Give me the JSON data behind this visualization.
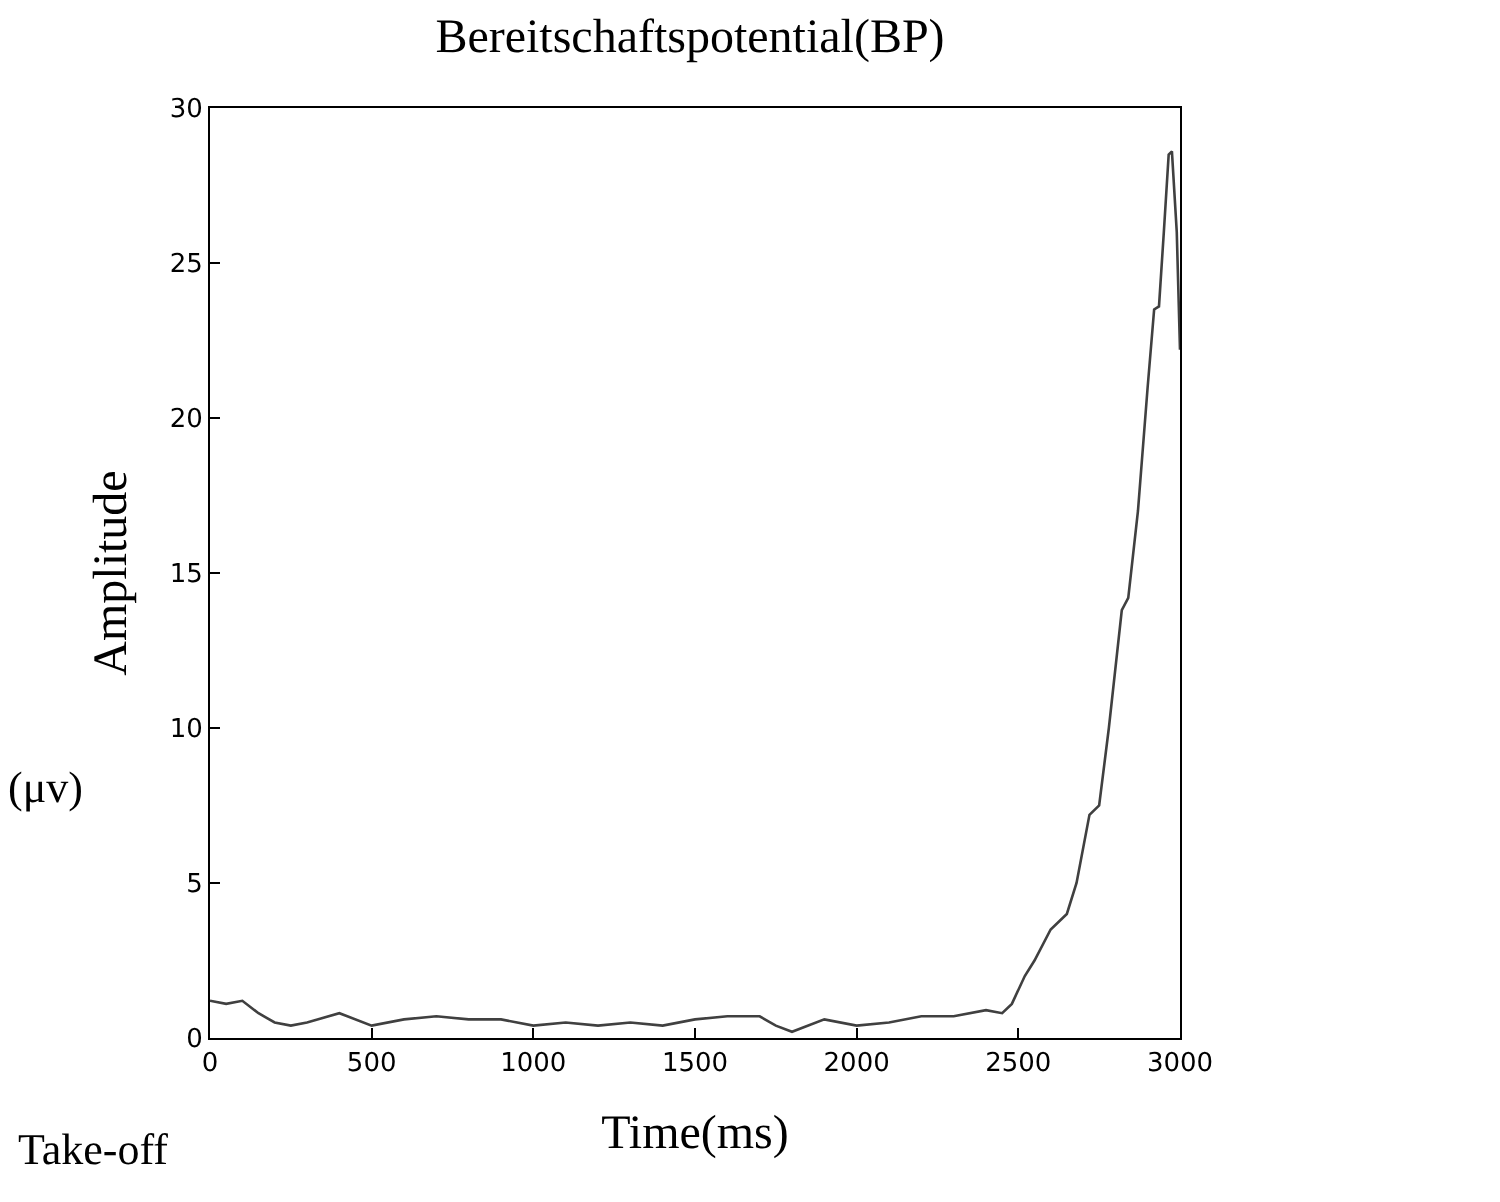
{
  "chart_data": {
    "type": "line",
    "title": "Bereitschaftspotential(BP)",
    "xlabel": "Time(ms)",
    "ylabel": "Amplitude",
    "annotations": [
      "(μv)",
      "Take-off"
    ],
    "x": [
      0,
      50,
      100,
      150,
      200,
      250,
      300,
      400,
      500,
      600,
      700,
      800,
      900,
      1000,
      1100,
      1200,
      1300,
      1400,
      1500,
      1600,
      1700,
      1750,
      1800,
      1900,
      2000,
      2100,
      2200,
      2300,
      2400,
      2450,
      2480,
      2520,
      2550,
      2600,
      2650,
      2680,
      2720,
      2750,
      2780,
      2820,
      2840,
      2870,
      2900,
      2920,
      2935,
      2950,
      2965,
      2975,
      2990,
      3000
    ],
    "series": [
      {
        "color": "#404040",
        "values": [
          1.2,
          1.1,
          1.2,
          0.8,
          0.5,
          0.4,
          0.5,
          0.8,
          0.4,
          0.6,
          0.7,
          0.6,
          0.6,
          0.4,
          0.5,
          0.4,
          0.5,
          0.4,
          0.6,
          0.7,
          0.7,
          0.4,
          0.2,
          0.6,
          0.4,
          0.5,
          0.7,
          0.7,
          0.9,
          0.8,
          1.1,
          2.0,
          2.5,
          3.5,
          4.0,
          5.0,
          7.2,
          7.5,
          10,
          13.8,
          14.2,
          17,
          21,
          23.5,
          23.6,
          26,
          28.5,
          28.6,
          26,
          22.2
        ]
      }
    ],
    "xlim": [
      0,
      3000
    ],
    "xticks": [
      0,
      500,
      1000,
      1500,
      2000,
      2500,
      3000
    ],
    "ylim": [
      0,
      30
    ],
    "yticks": [
      0,
      5,
      10,
      15,
      20,
      25,
      30
    ],
    "grid": false,
    "legend": false,
    "marker": "none",
    "line_style": "solid"
  }
}
